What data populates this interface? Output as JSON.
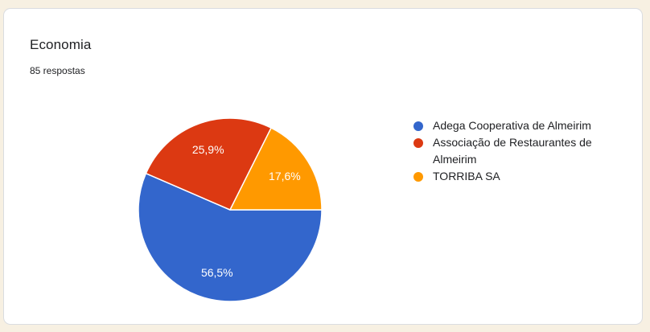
{
  "page": {
    "background_color": "#f7f0e2"
  },
  "card": {
    "title": "Economia",
    "subtitle": "85 respostas",
    "background_color": "#ffffff",
    "border_color": "#dadce0",
    "text_color": "#202124"
  },
  "chart_data": {
    "type": "pie",
    "title": "Economia",
    "subtitle": "85 respostas",
    "legend_position": "right",
    "start_angle_deg": 0,
    "direction": "clockwise",
    "label_color": "#ffffff",
    "slice_stroke_color": "#ffffff",
    "slices": [
      {
        "label": "Adega Cooperativa de Almeirim",
        "percent": 56.5,
        "percent_label": "56,5%",
        "color": "#3366cc"
      },
      {
        "label": "Associação de Restaurantes de Almeirim",
        "percent": 25.9,
        "percent_label": "25,9%",
        "color": "#dc3912"
      },
      {
        "label": "TORRIBA SA",
        "percent": 17.6,
        "percent_label": "17,6%",
        "color": "#ff9900"
      }
    ]
  }
}
